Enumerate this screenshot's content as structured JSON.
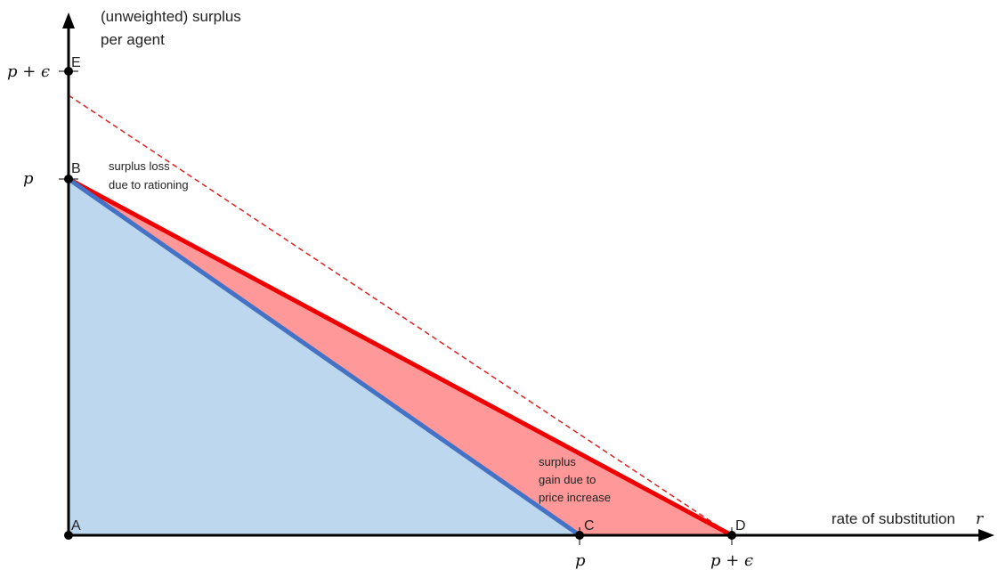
{
  "y_axis_label": [
    "(unweighted) surplus",
    "per agent"
  ],
  "x_axis_label": "rate of substitution",
  "x_axis_var": "r",
  "y_ticks": [
    {
      "id": "y-tick-p-plus-eps",
      "label": "p + ϵ"
    },
    {
      "id": "y-tick-p",
      "label": "p"
    }
  ],
  "x_ticks": [
    {
      "id": "x-tick-p",
      "label": "p"
    },
    {
      "id": "x-tick-p-plus-eps",
      "label": "p + ϵ"
    }
  ],
  "points": [
    {
      "id": "A",
      "label": "A"
    },
    {
      "id": "B",
      "label": "B"
    },
    {
      "id": "C",
      "label": "C"
    },
    {
      "id": "D",
      "label": "D"
    },
    {
      "id": "E",
      "label": "E"
    }
  ],
  "annotations": {
    "loss": [
      "surplus loss",
      "due to rationing"
    ],
    "gain": [
      "surplus",
      "gain due to",
      "price increase"
    ]
  },
  "colors": {
    "axis": "#000000",
    "blue_fill": "#bdd7ee",
    "blue_line": "#4472c4",
    "red_fill": "#ff9999",
    "red_line": "#ee0000",
    "dashed": "#dd2222"
  }
}
